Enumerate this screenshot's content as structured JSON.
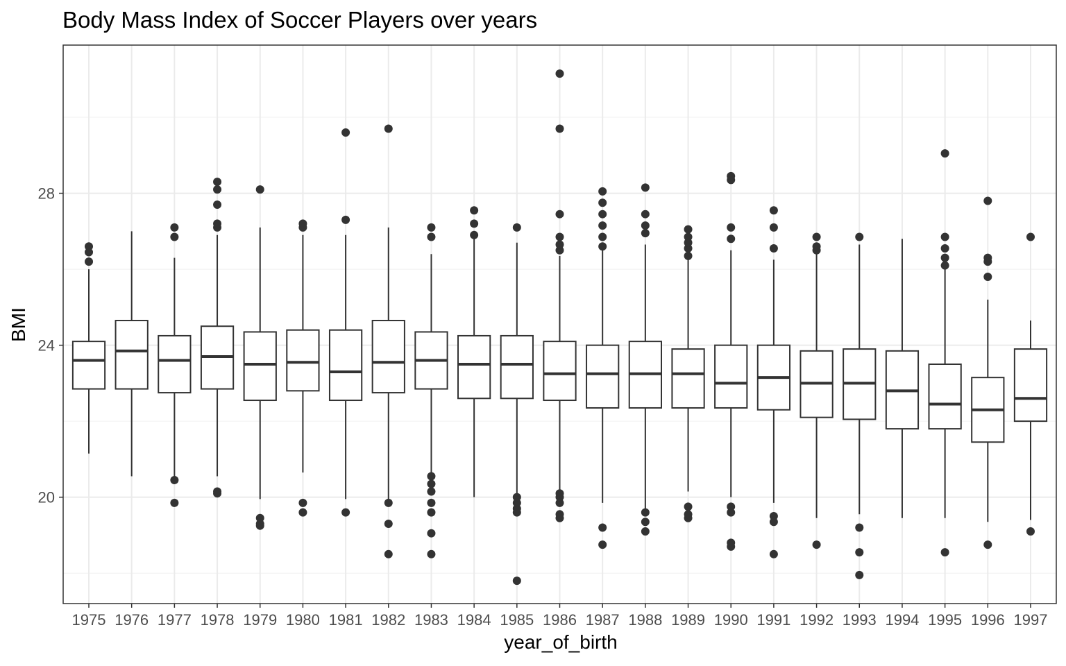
{
  "chart_data": {
    "type": "boxplot",
    "title": "Body Mass Index of Soccer Players over years",
    "xlabel": "year_of_birth",
    "ylabel": "BMI",
    "ylim": [
      17.2,
      31.9
    ],
    "yticks": [
      20,
      24,
      28
    ],
    "grid": true,
    "categories": [
      "1975",
      "1976",
      "1977",
      "1978",
      "1979",
      "1980",
      "1981",
      "1982",
      "1983",
      "1984",
      "1985",
      "1986",
      "1987",
      "1988",
      "1989",
      "1990",
      "1991",
      "1992",
      "1993",
      "1994",
      "1995",
      "1996",
      "1997"
    ],
    "boxes": [
      {
        "year": "1975",
        "lower_whisker": 21.15,
        "q1": 22.85,
        "median": 23.6,
        "q3": 24.1,
        "upper_whisker": 26.0,
        "outliers": [
          26.2,
          26.45,
          26.6
        ]
      },
      {
        "year": "1976",
        "lower_whisker": 20.55,
        "q1": 22.85,
        "median": 23.85,
        "q3": 24.65,
        "upper_whisker": 27.0,
        "outliers": []
      },
      {
        "year": "1977",
        "lower_whisker": 20.45,
        "q1": 22.75,
        "median": 23.6,
        "q3": 24.25,
        "upper_whisker": 26.3,
        "outliers": [
          19.85,
          20.45,
          26.85,
          27.1
        ]
      },
      {
        "year": "1978",
        "lower_whisker": 20.55,
        "q1": 22.85,
        "median": 23.7,
        "q3": 24.5,
        "upper_whisker": 26.9,
        "outliers": [
          20.1,
          20.15,
          27.1,
          27.2,
          27.7,
          28.1,
          28.3
        ]
      },
      {
        "year": "1979",
        "lower_whisker": 19.95,
        "q1": 22.55,
        "median": 23.5,
        "q3": 24.35,
        "upper_whisker": 27.1,
        "outliers": [
          19.25,
          19.3,
          19.45,
          28.1
        ]
      },
      {
        "year": "1980",
        "lower_whisker": 20.65,
        "q1": 22.8,
        "median": 23.55,
        "q3": 24.4,
        "upper_whisker": 26.9,
        "outliers": [
          19.6,
          19.85,
          27.1,
          27.2
        ]
      },
      {
        "year": "1981",
        "lower_whisker": 19.95,
        "q1": 22.55,
        "median": 23.3,
        "q3": 24.4,
        "upper_whisker": 26.9,
        "outliers": [
          19.6,
          27.3,
          29.6
        ]
      },
      {
        "year": "1982",
        "lower_whisker": 19.9,
        "q1": 22.75,
        "median": 23.55,
        "q3": 24.65,
        "upper_whisker": 27.1,
        "outliers": [
          18.5,
          19.3,
          19.85,
          29.7
        ]
      },
      {
        "year": "1983",
        "lower_whisker": 20.55,
        "q1": 22.85,
        "median": 23.6,
        "q3": 24.35,
        "upper_whisker": 26.4,
        "outliers": [
          18.5,
          19.05,
          19.6,
          19.85,
          20.15,
          20.35,
          20.55,
          26.85,
          27.1
        ]
      },
      {
        "year": "1984",
        "lower_whisker": 20.0,
        "q1": 22.6,
        "median": 23.5,
        "q3": 24.25,
        "upper_whisker": 26.85,
        "outliers": [
          26.9,
          27.2,
          27.55
        ]
      },
      {
        "year": "1985",
        "lower_whisker": 20.0,
        "q1": 22.6,
        "median": 23.5,
        "q3": 24.25,
        "upper_whisker": 26.7,
        "outliers": [
          17.8,
          19.6,
          19.7,
          19.85,
          20.0,
          27.1
        ]
      },
      {
        "year": "1986",
        "lower_whisker": 20.1,
        "q1": 22.55,
        "median": 23.25,
        "q3": 24.1,
        "upper_whisker": 26.35,
        "outliers": [
          19.45,
          19.55,
          19.85,
          20.0,
          20.1,
          26.5,
          26.65,
          26.85,
          27.45,
          29.7,
          31.15
        ]
      },
      {
        "year": "1987",
        "lower_whisker": 19.85,
        "q1": 22.35,
        "median": 23.25,
        "q3": 24.0,
        "upper_whisker": 26.6,
        "outliers": [
          18.75,
          19.2,
          26.6,
          26.85,
          27.15,
          27.45,
          27.75,
          28.05
        ]
      },
      {
        "year": "1988",
        "lower_whisker": 19.6,
        "q1": 22.35,
        "median": 23.25,
        "q3": 24.1,
        "upper_whisker": 26.65,
        "outliers": [
          19.1,
          19.35,
          19.6,
          26.95,
          27.15,
          27.45,
          28.15
        ]
      },
      {
        "year": "1989",
        "lower_whisker": 20.15,
        "q1": 22.35,
        "median": 23.25,
        "q3": 23.9,
        "upper_whisker": 26.3,
        "outliers": [
          19.45,
          19.55,
          19.75,
          26.35,
          26.55,
          26.7,
          26.85,
          27.05
        ]
      },
      {
        "year": "1990",
        "lower_whisker": 20.0,
        "q1": 22.35,
        "median": 23.0,
        "q3": 24.0,
        "upper_whisker": 26.5,
        "outliers": [
          18.7,
          18.8,
          19.6,
          19.75,
          26.8,
          27.1,
          28.35,
          28.45
        ]
      },
      {
        "year": "1991",
        "lower_whisker": 19.85,
        "q1": 22.3,
        "median": 23.15,
        "q3": 24.0,
        "upper_whisker": 26.25,
        "outliers": [
          18.5,
          19.35,
          19.5,
          26.55,
          27.1,
          27.55
        ]
      },
      {
        "year": "1992",
        "lower_whisker": 19.45,
        "q1": 22.1,
        "median": 23.0,
        "q3": 23.85,
        "upper_whisker": 26.45,
        "outliers": [
          18.75,
          26.5,
          26.6,
          26.85
        ]
      },
      {
        "year": "1993",
        "lower_whisker": 19.55,
        "q1": 22.05,
        "median": 23.0,
        "q3": 23.9,
        "upper_whisker": 26.65,
        "outliers": [
          17.95,
          18.55,
          19.2,
          26.85
        ]
      },
      {
        "year": "1994",
        "lower_whisker": 19.45,
        "q1": 21.8,
        "median": 22.8,
        "q3": 23.85,
        "upper_whisker": 26.8,
        "outliers": []
      },
      {
        "year": "1995",
        "lower_whisker": 19.45,
        "q1": 21.8,
        "median": 22.45,
        "q3": 23.5,
        "upper_whisker": 26.05,
        "outliers": [
          18.55,
          26.1,
          26.3,
          26.55,
          26.85,
          29.05
        ]
      },
      {
        "year": "1996",
        "lower_whisker": 19.35,
        "q1": 21.45,
        "median": 22.3,
        "q3": 23.15,
        "upper_whisker": 25.2,
        "outliers": [
          18.75,
          25.8,
          26.2,
          26.3,
          27.8
        ]
      },
      {
        "year": "1997",
        "lower_whisker": 19.4,
        "q1": 22.0,
        "median": 22.6,
        "q3": 23.9,
        "upper_whisker": 24.65,
        "outliers": [
          19.1,
          26.85
        ]
      }
    ]
  }
}
